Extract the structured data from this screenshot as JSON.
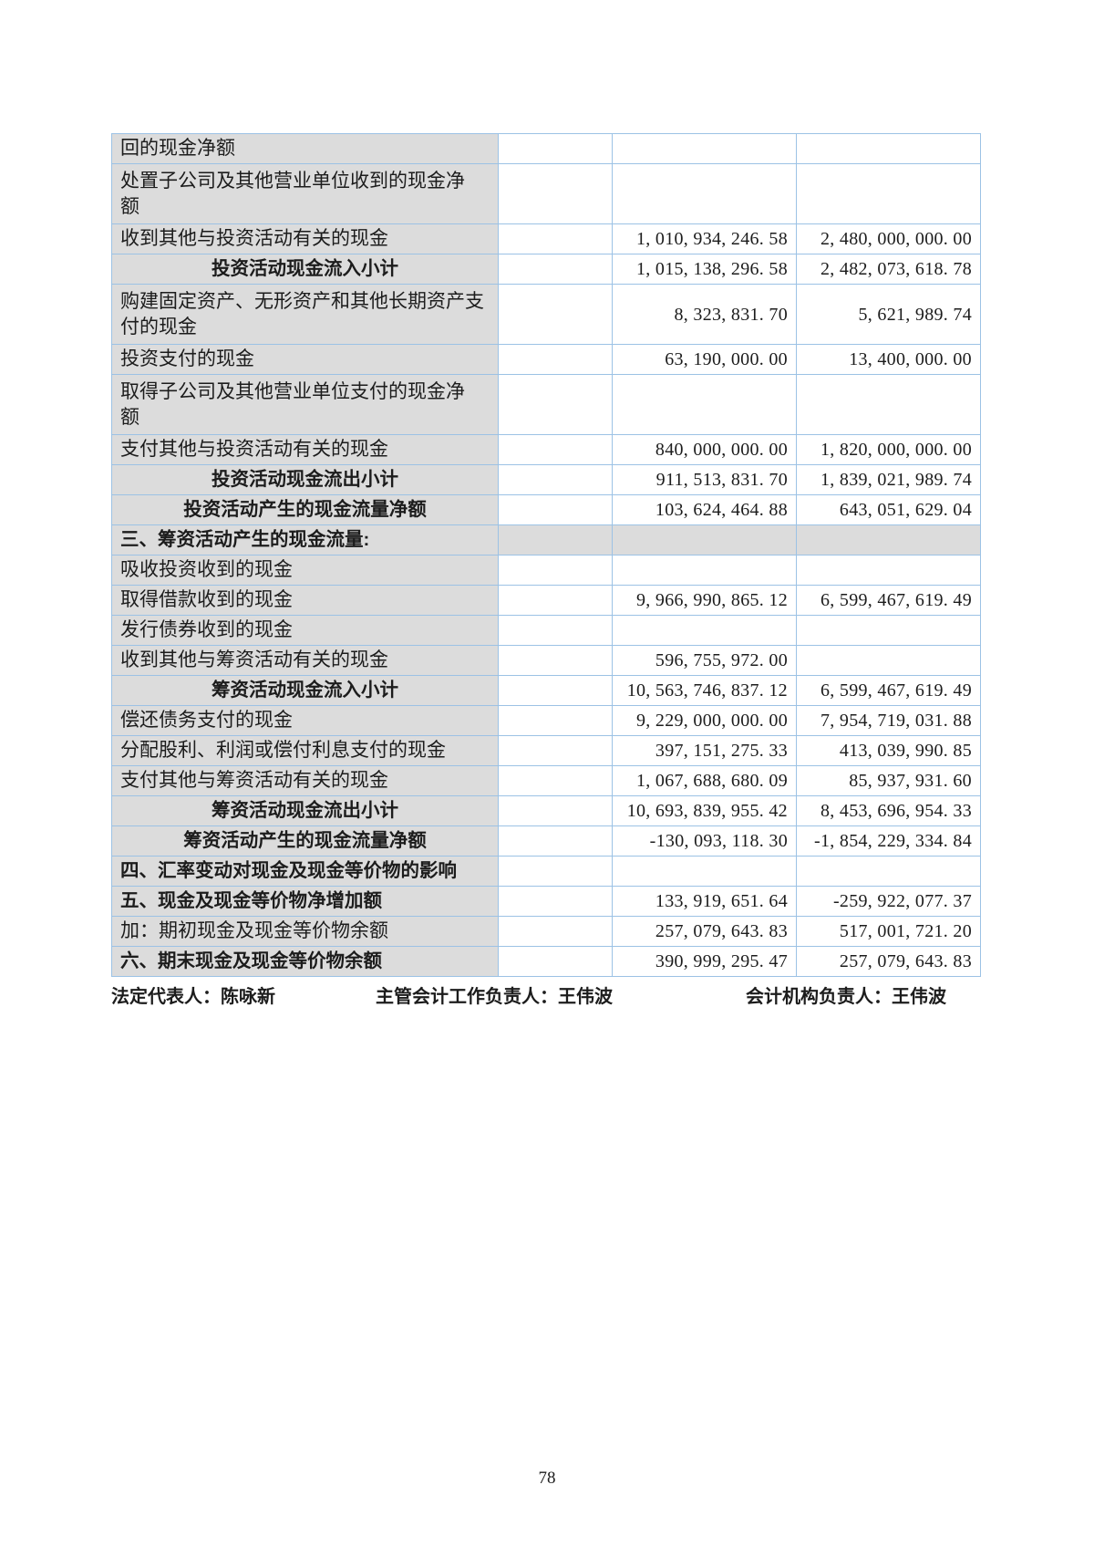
{
  "colors": {
    "table_border": "#9cc2e5",
    "cell_gray": "#dcdcdc",
    "text": "#1c1c1c"
  },
  "table": {
    "rows": [
      {
        "label": "回的现金净额",
        "bold": false,
        "center": false,
        "two_line": false,
        "full_gray": false,
        "values": [
          "",
          ""
        ]
      },
      {
        "label": "处置子公司及其他营业单位收到的现金净\n额",
        "bold": false,
        "center": false,
        "two_line": true,
        "full_gray": false,
        "values": [
          "",
          ""
        ]
      },
      {
        "label": "收到其他与投资活动有关的现金",
        "bold": false,
        "center": false,
        "two_line": false,
        "full_gray": false,
        "values": [
          "1, 010, 934, 246. 58",
          "2, 480, 000, 000. 00"
        ]
      },
      {
        "label": "投资活动现金流入小计",
        "bold": true,
        "center": true,
        "two_line": false,
        "full_gray": false,
        "values": [
          "1, 015, 138, 296. 58",
          "2, 482, 073, 618. 78"
        ]
      },
      {
        "label": "购建固定资产、无形资产和其他长期资产支\n付的现金",
        "bold": false,
        "center": false,
        "two_line": true,
        "full_gray": false,
        "values": [
          "8, 323, 831. 70",
          "5, 621, 989. 74"
        ]
      },
      {
        "label": "投资支付的现金",
        "bold": false,
        "center": false,
        "two_line": false,
        "full_gray": false,
        "values": [
          "63, 190, 000. 00",
          "13, 400, 000. 00"
        ]
      },
      {
        "label": "取得子公司及其他营业单位支付的现金净\n额",
        "bold": false,
        "center": false,
        "two_line": true,
        "full_gray": false,
        "values": [
          "",
          ""
        ]
      },
      {
        "label": "支付其他与投资活动有关的现金",
        "bold": false,
        "center": false,
        "two_line": false,
        "full_gray": false,
        "values": [
          "840, 000, 000. 00",
          "1, 820, 000, 000. 00"
        ]
      },
      {
        "label": "投资活动现金流出小计",
        "bold": true,
        "center": true,
        "two_line": false,
        "full_gray": false,
        "values": [
          "911, 513, 831. 70",
          "1, 839, 021, 989. 74"
        ]
      },
      {
        "label": "投资活动产生的现金流量净额",
        "bold": true,
        "center": true,
        "two_line": false,
        "full_gray": false,
        "values": [
          "103, 624, 464. 88",
          "643, 051, 629. 04"
        ]
      },
      {
        "label": "三、筹资活动产生的现金流量:",
        "bold": true,
        "center": false,
        "two_line": false,
        "full_gray": true,
        "values": [
          "",
          ""
        ]
      },
      {
        "label": "吸收投资收到的现金",
        "bold": false,
        "center": false,
        "two_line": false,
        "full_gray": false,
        "values": [
          "",
          ""
        ]
      },
      {
        "label": "取得借款收到的现金",
        "bold": false,
        "center": false,
        "two_line": false,
        "full_gray": false,
        "values": [
          "9, 966, 990, 865. 12",
          "6, 599, 467, 619. 49"
        ]
      },
      {
        "label": "发行债券收到的现金",
        "bold": false,
        "center": false,
        "two_line": false,
        "full_gray": false,
        "values": [
          "",
          ""
        ]
      },
      {
        "label": "收到其他与筹资活动有关的现金",
        "bold": false,
        "center": false,
        "two_line": false,
        "full_gray": false,
        "values": [
          "596, 755, 972. 00",
          ""
        ]
      },
      {
        "label": "筹资活动现金流入小计",
        "bold": true,
        "center": true,
        "two_line": false,
        "full_gray": false,
        "values": [
          "10, 563, 746, 837. 12",
          "6, 599, 467, 619. 49"
        ]
      },
      {
        "label": "偿还债务支付的现金",
        "bold": false,
        "center": false,
        "two_line": false,
        "full_gray": false,
        "values": [
          "9, 229, 000, 000. 00",
          "7, 954, 719, 031. 88"
        ]
      },
      {
        "label": "分配股利、利润或偿付利息支付的现金",
        "bold": false,
        "center": false,
        "two_line": false,
        "full_gray": false,
        "values": [
          "397, 151, 275. 33",
          "413, 039, 990. 85"
        ]
      },
      {
        "label": "支付其他与筹资活动有关的现金",
        "bold": false,
        "center": false,
        "two_line": false,
        "full_gray": false,
        "values": [
          "1, 067, 688, 680. 09",
          "85, 937, 931. 60"
        ]
      },
      {
        "label": "筹资活动现金流出小计",
        "bold": true,
        "center": true,
        "two_line": false,
        "full_gray": false,
        "values": [
          "10, 693, 839, 955. 42",
          "8, 453, 696, 954. 33"
        ]
      },
      {
        "label": "筹资活动产生的现金流量净额",
        "bold": true,
        "center": true,
        "two_line": false,
        "full_gray": false,
        "values": [
          "-130, 093, 118. 30",
          "-1, 854, 229, 334. 84"
        ]
      },
      {
        "label": "四、汇率变动对现金及现金等价物的影响",
        "bold": true,
        "center": false,
        "two_line": false,
        "full_gray": false,
        "values": [
          "",
          ""
        ]
      },
      {
        "label": "五、现金及现金等价物净增加额",
        "bold": true,
        "center": false,
        "two_line": false,
        "full_gray": false,
        "values": [
          "133, 919, 651. 64",
          "-259, 922, 077. 37"
        ]
      },
      {
        "label": "加：期初现金及现金等价物余额",
        "bold": false,
        "center": false,
        "two_line": false,
        "full_gray": false,
        "values": [
          "257, 079, 643. 83",
          "517, 001, 721. 20"
        ]
      },
      {
        "label": "六、期末现金及现金等价物余额",
        "bold": true,
        "center": false,
        "two_line": false,
        "full_gray": false,
        "values": [
          "390, 999, 295. 47",
          "257, 079, 643. 83"
        ]
      }
    ]
  },
  "footer": {
    "legal_representative": "法定代表人：陈咏新",
    "chief_accounting_officer": "主管会计工作负责人：王伟波",
    "accounting_department_head": "会计机构负责人：王伟波",
    "page_number": "78"
  }
}
